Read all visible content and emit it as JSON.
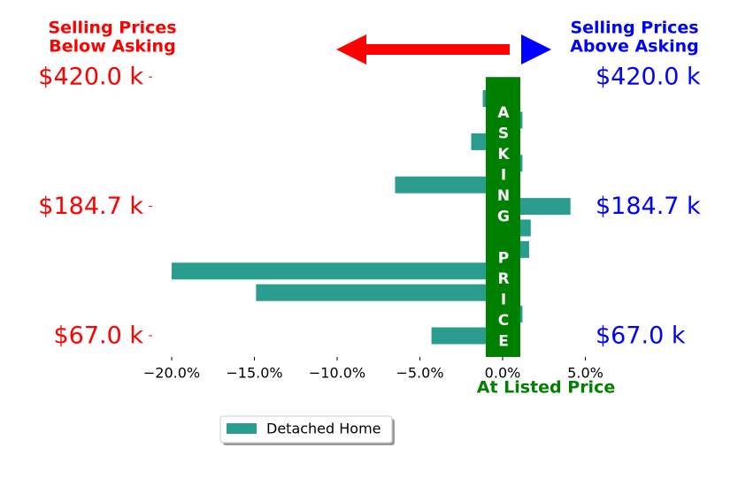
{
  "chart_data": {
    "type": "barh",
    "title_left": [
      "Selling Prices",
      "Below Asking"
    ],
    "title_right": [
      "Selling Prices",
      "Above Asking"
    ],
    "left_label_color": "red",
    "right_label_color": "blue",
    "categories": [
      "$67.0 k",
      null,
      null,
      null,
      null,
      null,
      "$184.7 k",
      null,
      null,
      null,
      null,
      null,
      "$420.0 k"
    ],
    "series": [
      {
        "name": "Detached Home",
        "color": "#2a9d8f",
        "values": [
          -4.3,
          1.2,
          -14.9,
          -20.0,
          1.6,
          1.7,
          4.1,
          -6.5,
          1.2,
          -1.9,
          1.2,
          -1.2,
          0
        ]
      }
    ],
    "xlim": [
      -21,
      6
    ],
    "xticks": [
      {
        "value": -20,
        "label": "−20.0%"
      },
      {
        "value": -15,
        "label": "−15.0%"
      },
      {
        "value": -10,
        "label": "−10.0%"
      },
      {
        "value": -5,
        "label": "−5.0%"
      },
      {
        "value": 0,
        "label": "0.0%"
      },
      {
        "value": 5,
        "label": "5.0%"
      }
    ],
    "annotation": "ASKING PRICE",
    "annotation_color": "green",
    "xlabel": "At Listed Price"
  }
}
